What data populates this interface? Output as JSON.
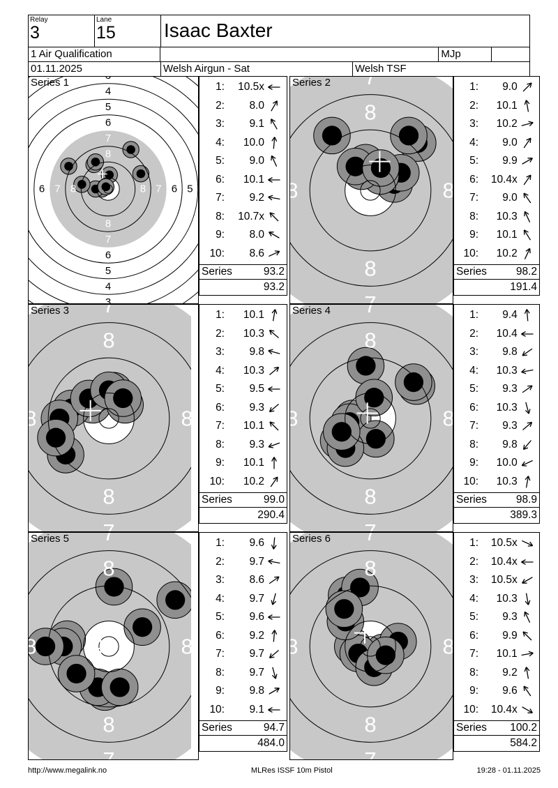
{
  "header": {
    "relay_label": "Relay",
    "relay_value": "3",
    "lane_label": "Lane",
    "lane_value": "15",
    "shooter_name": "Isaac Baxter",
    "event": "1 Air Qualification",
    "class": "MJp",
    "date": "01.11.2025",
    "match_name": "Welsh Airgun - Sat",
    "club": "Welsh TSF"
  },
  "labels": {
    "series_word": "Series"
  },
  "target_style": {
    "disc_color": "#c8c8c8",
    "hole_outer_color": "#8f8f8f",
    "hole_inner_color": "#000000",
    "ring_line_color": "#000000",
    "label_color_inner": "#ffffff",
    "label_color_outer": "#000000",
    "cross_color": "#ffffff",
    "full_view_ring_labels": [
      3,
      4,
      5,
      6,
      7,
      8
    ],
    "zoom_view_ring_labels": [
      7,
      8
    ]
  },
  "series": [
    {
      "title": "Series 1",
      "view": "full",
      "total": "93.2",
      "cumulative": "93.2",
      "shots": [
        {
          "no": "1:",
          "value": "10.5x",
          "angle_deg": 180
        },
        {
          "no": "2:",
          "value": "8.0",
          "angle_deg": 60
        },
        {
          "no": "3:",
          "value": "9.1",
          "angle_deg": 120
        },
        {
          "no": "4:",
          "value": "10.0",
          "angle_deg": 85
        },
        {
          "no": "5:",
          "value": "9.0",
          "angle_deg": 115
        },
        {
          "no": "6:",
          "value": "10.1",
          "angle_deg": 180
        },
        {
          "no": "7:",
          "value": "9.2",
          "angle_deg": 170
        },
        {
          "no": "8:",
          "value": "10.7x",
          "angle_deg": 135
        },
        {
          "no": "9:",
          "value": "8.0",
          "angle_deg": 150
        },
        {
          "no": "10:",
          "value": "8.6",
          "angle_deg": 25
        }
      ]
    },
    {
      "title": "Series 2",
      "view": "zoom",
      "total": "98.2",
      "cumulative": "191.4",
      "shots": [
        {
          "no": "1:",
          "value": "9.0",
          "angle_deg": 45
        },
        {
          "no": "2:",
          "value": "10.1",
          "angle_deg": 100
        },
        {
          "no": "3:",
          "value": "10.2",
          "angle_deg": 15
        },
        {
          "no": "4:",
          "value": "9.0",
          "angle_deg": 55
        },
        {
          "no": "5:",
          "value": "9.9",
          "angle_deg": 30
        },
        {
          "no": "6:",
          "value": "10.4x",
          "angle_deg": 55
        },
        {
          "no": "7:",
          "value": "9.0",
          "angle_deg": 125
        },
        {
          "no": "8:",
          "value": "10.3",
          "angle_deg": 115
        },
        {
          "no": "9:",
          "value": "10.1",
          "angle_deg": 122
        },
        {
          "no": "10:",
          "value": "10.2",
          "angle_deg": 65
        }
      ]
    },
    {
      "title": "Series 3",
      "view": "zoom",
      "total": "99.0",
      "cumulative": "290.4",
      "shots": [
        {
          "no": "1:",
          "value": "10.1",
          "angle_deg": 80
        },
        {
          "no": "2:",
          "value": "10.3",
          "angle_deg": 140
        },
        {
          "no": "3:",
          "value": "9.8",
          "angle_deg": 165
        },
        {
          "no": "4:",
          "value": "10.3",
          "angle_deg": 40
        },
        {
          "no": "5:",
          "value": "9.5",
          "angle_deg": 180
        },
        {
          "no": "6:",
          "value": "9.3",
          "angle_deg": 220
        },
        {
          "no": "7:",
          "value": "10.1",
          "angle_deg": 135
        },
        {
          "no": "8:",
          "value": "9.3",
          "angle_deg": 200
        },
        {
          "no": "9:",
          "value": "10.1",
          "angle_deg": 90
        },
        {
          "no": "10:",
          "value": "10.2",
          "angle_deg": 55
        }
      ]
    },
    {
      "title": "Series 4",
      "view": "zoom",
      "total": "98.9",
      "cumulative": "389.3",
      "shots": [
        {
          "no": "1:",
          "value": "9.4",
          "angle_deg": 95
        },
        {
          "no": "2:",
          "value": "10.4",
          "angle_deg": 180
        },
        {
          "no": "3:",
          "value": "9.8",
          "angle_deg": 215
        },
        {
          "no": "4:",
          "value": "10.3",
          "angle_deg": 190
        },
        {
          "no": "5:",
          "value": "9.3",
          "angle_deg": 35
        },
        {
          "no": "6:",
          "value": "10.3",
          "angle_deg": 285
        },
        {
          "no": "7:",
          "value": "9.3",
          "angle_deg": 40
        },
        {
          "no": "8:",
          "value": "9.8",
          "angle_deg": 230
        },
        {
          "no": "9:",
          "value": "10.0",
          "angle_deg": 205
        },
        {
          "no": "10:",
          "value": "10.3",
          "angle_deg": 80
        }
      ]
    },
    {
      "title": "Series 5",
      "view": "zoom",
      "total": "94.7",
      "cumulative": "484.0",
      "shots": [
        {
          "no": "1:",
          "value": "9.6",
          "angle_deg": 265
        },
        {
          "no": "2:",
          "value": "9.7",
          "angle_deg": 170
        },
        {
          "no": "3:",
          "value": "8.6",
          "angle_deg": 35
        },
        {
          "no": "4:",
          "value": "9.7",
          "angle_deg": 255
        },
        {
          "no": "5:",
          "value": "9.6",
          "angle_deg": 180
        },
        {
          "no": "6:",
          "value": "9.2",
          "angle_deg": 85
        },
        {
          "no": "7:",
          "value": "9.7",
          "angle_deg": 220
        },
        {
          "no": "8:",
          "value": "9.7",
          "angle_deg": 285
        },
        {
          "no": "9:",
          "value": "9.8",
          "angle_deg": 30
        },
        {
          "no": "10:",
          "value": "9.1",
          "angle_deg": 180
        }
      ]
    },
    {
      "title": "Series 6",
      "view": "zoom",
      "total": "100.2",
      "cumulative": "584.2",
      "shots": [
        {
          "no": "1:",
          "value": "10.5x",
          "angle_deg": 335
        },
        {
          "no": "2:",
          "value": "10.4x",
          "angle_deg": 180
        },
        {
          "no": "3:",
          "value": "10.5x",
          "angle_deg": 210
        },
        {
          "no": "4:",
          "value": "10.3",
          "angle_deg": 280
        },
        {
          "no": "5:",
          "value": "9.3",
          "angle_deg": 115
        },
        {
          "no": "6:",
          "value": "9.9",
          "angle_deg": 135
        },
        {
          "no": "7:",
          "value": "10.1",
          "angle_deg": 10
        },
        {
          "no": "8:",
          "value": "9.2",
          "angle_deg": 100
        },
        {
          "no": "9:",
          "value": "9.6",
          "angle_deg": 125
        },
        {
          "no": "10:",
          "value": "10.4x",
          "angle_deg": 330
        }
      ]
    }
  ],
  "footer": {
    "url": "http://www.megalink.no",
    "program": "MLRes ISSF 10m Pistol",
    "printed": "19:28 - 01.11.2025"
  }
}
